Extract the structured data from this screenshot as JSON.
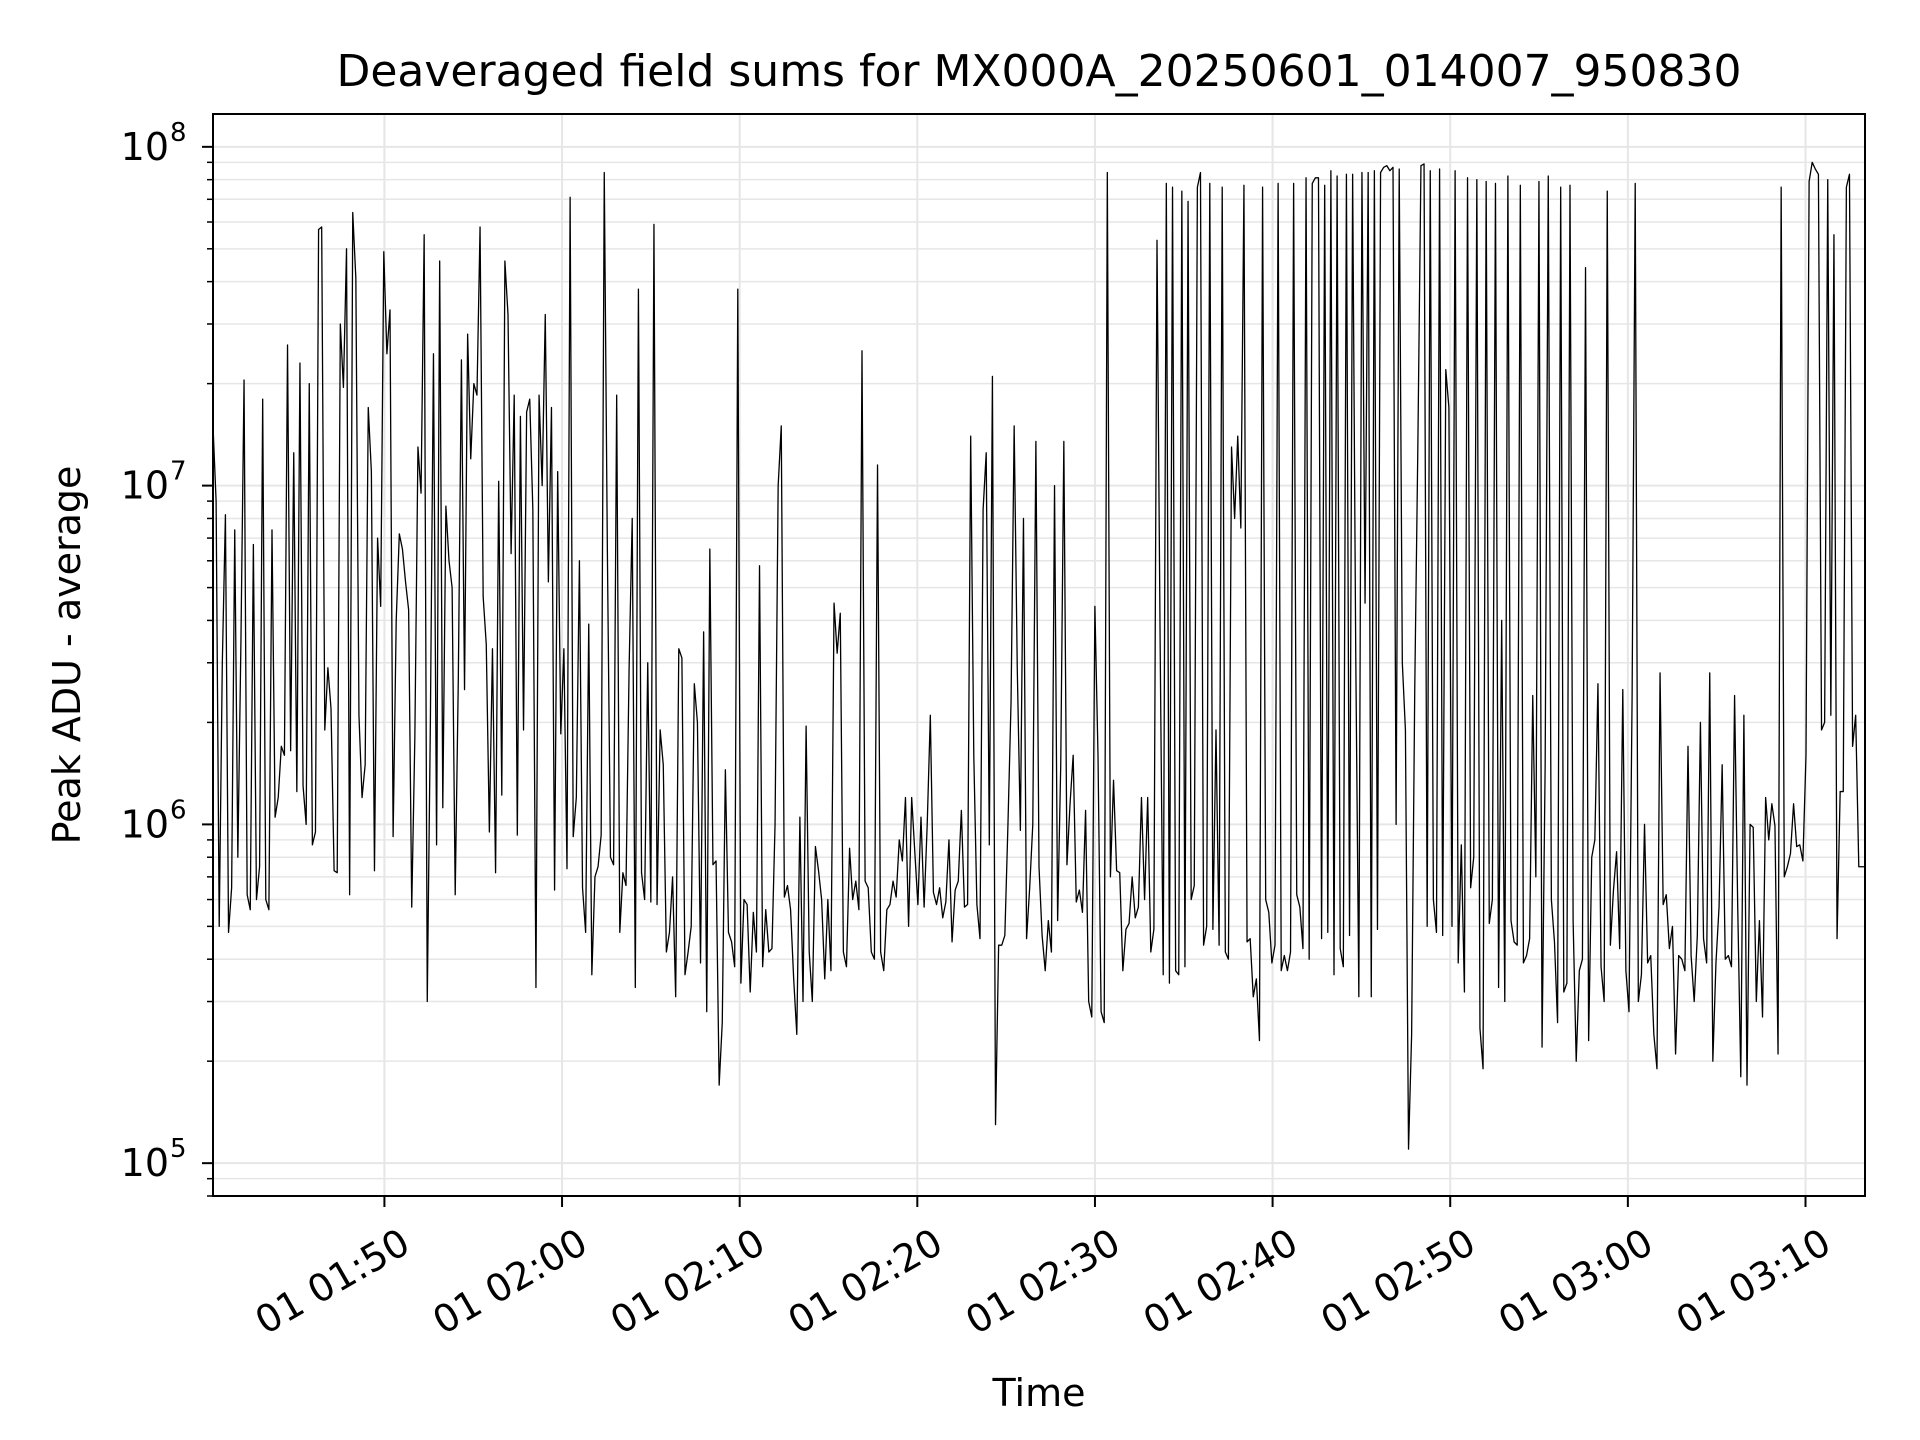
{
  "chart_data": {
    "type": "line",
    "title": "Deaveraged field sums for MX000A_20250601_014007_950830",
    "xlabel": "Time",
    "ylabel": "Peak ADU - average",
    "yscale": "log",
    "ylim": [
      80000,
      125000000
    ],
    "xlim": [
      "2025-06-01 01:40:21",
      "2025-06-01 03:13:21"
    ],
    "grid": true,
    "legend": "none",
    "line_color": "#000000",
    "grid_color": "#e6e6e6",
    "x_ticks": [
      {
        "time": "2025-06-01 01:50",
        "label": "01 01:50"
      },
      {
        "time": "2025-06-01 02:00",
        "label": "01 02:00"
      },
      {
        "time": "2025-06-01 02:10",
        "label": "01 02:10"
      },
      {
        "time": "2025-06-01 02:20",
        "label": "01 02:20"
      },
      {
        "time": "2025-06-01 02:30",
        "label": "01 02:30"
      },
      {
        "time": "2025-06-01 02:40",
        "label": "01 02:40"
      },
      {
        "time": "2025-06-01 02:50",
        "label": "01 02:50"
      },
      {
        "time": "2025-06-01 03:00",
        "label": "01 03:00"
      },
      {
        "time": "2025-06-01 03:10",
        "label": "01 03:10"
      }
    ],
    "y_ticks": [
      {
        "value": 100000,
        "base": "10",
        "exp": "5"
      },
      {
        "value": 1000000,
        "base": "10",
        "exp": "6"
      },
      {
        "value": 10000000,
        "base": "10",
        "exp": "7"
      },
      {
        "value": 100000000,
        "base": "10",
        "exp": "8"
      }
    ],
    "series": [
      {
        "x_start": "2025-06-01 01:40:21",
        "x_end": "2025-06-01 03:13:21",
        "values": [
          15000000,
          9000000,
          500000,
          3000000,
          8200000,
          480000,
          650000,
          7400000,
          800000,
          3500000,
          20500000,
          620000,
          560000,
          6700000,
          600000,
          750000,
          18000000,
          600000,
          560000,
          7400000,
          1050000,
          1200000,
          1700000,
          1600000,
          26000000,
          1650000,
          12500000,
          1250000,
          23000000,
          1300000,
          1000000,
          20000000,
          870000,
          950000,
          57000000,
          58000000,
          1900000,
          2900000,
          2200000,
          730000,
          720000,
          30000000,
          19500000,
          50000000,
          620000,
          64000000,
          41000000,
          2100000,
          1200000,
          1500000,
          17000000,
          11000000,
          730000,
          7000000,
          4400000,
          49000000,
          24500000,
          33000000,
          920000,
          4000000,
          7200000,
          6500000,
          5200000,
          4300000,
          570000,
          1800000,
          13000000,
          9500000,
          55000000,
          300000,
          2000000,
          24500000,
          870000,
          46000000,
          1120000,
          8700000,
          6000000,
          5000000,
          620000,
          2700000,
          23500000,
          2500000,
          28000000,
          12000000,
          20000000,
          18500000,
          58000000,
          4700000,
          3400000,
          950000,
          3300000,
          720000,
          10300000,
          1220000,
          46000000,
          32000000,
          6300000,
          18500000,
          930000,
          16000000,
          1900000,
          16500000,
          18000000,
          8500000,
          330000,
          18500000,
          10000000,
          32000000,
          5200000,
          17000000,
          640000,
          11000000,
          1850000,
          3300000,
          740000,
          71000000,
          920000,
          1200000,
          6000000,
          650000,
          480000,
          3900000,
          360000,
          700000,
          750000,
          930000,
          84000000,
          6400000,
          800000,
          760000,
          18500000,
          480000,
          720000,
          660000,
          2900000,
          8000000,
          330000,
          38000000,
          720000,
          600000,
          3000000,
          590000,
          59000000,
          580000,
          1900000,
          1500000,
          420000,
          480000,
          700000,
          310000,
          3300000,
          3100000,
          360000,
          420000,
          500000,
          2600000,
          2000000,
          390000,
          3700000,
          280000,
          6500000,
          760000,
          780000,
          170000,
          260000,
          1450000,
          480000,
          450000,
          380000,
          38000000,
          340000,
          600000,
          580000,
          320000,
          550000,
          420000,
          5800000,
          380000,
          560000,
          420000,
          430000,
          1000000,
          10000000,
          15000000,
          610000,
          660000,
          560000,
          350000,
          240000,
          1050000,
          300000,
          1950000,
          420000,
          300000,
          860000,
          730000,
          600000,
          350000,
          600000,
          370000,
          4500000,
          3200000,
          4200000,
          420000,
          380000,
          850000,
          600000,
          680000,
          560000,
          25000000,
          680000,
          650000,
          420000,
          400000,
          11500000,
          420000,
          370000,
          560000,
          580000,
          680000,
          610000,
          900000,
          780000,
          1200000,
          500000,
          1200000,
          830000,
          580000,
          1050000,
          570000,
          1000000,
          2100000,
          630000,
          580000,
          650000,
          530000,
          590000,
          900000,
          450000,
          640000,
          680000,
          1100000,
          570000,
          580000,
          14000000,
          1600000,
          580000,
          460000,
          8500000,
          12500000,
          870000,
          21000000,
          130000,
          440000,
          440000,
          470000,
          1000000,
          2300000,
          15000000,
          2900000,
          960000,
          8000000,
          460000,
          650000,
          1000000,
          13500000,
          750000,
          470000,
          370000,
          520000,
          420000,
          10000000,
          520000,
          1500000,
          13500000,
          760000,
          1150000,
          1600000,
          590000,
          640000,
          550000,
          1100000,
          300000,
          270000,
          4400000,
          1600000,
          280000,
          260000,
          84000000,
          700000,
          1350000,
          730000,
          720000,
          370000,
          490000,
          510000,
          700000,
          530000,
          570000,
          1200000,
          600000,
          1200000,
          420000,
          490000,
          53000000,
          3500000,
          360000,
          78000000,
          340000,
          76000000,
          370000,
          360000,
          74000000,
          380000,
          69000000,
          600000,
          660000,
          76000000,
          84000000,
          440000,
          500000,
          78000000,
          490000,
          1900000,
          440000,
          76000000,
          420000,
          400000,
          13000000,
          8000000,
          14000000,
          7500000,
          77000000,
          450000,
          460000,
          310000,
          350000,
          230000,
          76000000,
          600000,
          550000,
          390000,
          440000,
          78000000,
          370000,
          410000,
          370000,
          420000,
          78000000,
          620000,
          570000,
          430000,
          81000000,
          400000,
          78000000,
          81000000,
          81000000,
          460000,
          77000000,
          480000,
          85000000,
          360000,
          82000000,
          430000,
          380000,
          83000000,
          470000,
          83000000,
          3200000,
          310000,
          84000000,
          4500000,
          84000000,
          310000,
          85000000,
          490000,
          84000000,
          87000000,
          88000000,
          85000000,
          87000000,
          1000000,
          86000000,
          3000000,
          1900000,
          110000,
          240000,
          2500000,
          13000000,
          88000000,
          89000000,
          500000,
          85000000,
          600000,
          480000,
          86000000,
          470000,
          22000000,
          17000000,
          500000,
          85000000,
          390000,
          870000,
          320000,
          81000000,
          650000,
          800000,
          80000000,
          250000,
          190000,
          79000000,
          510000,
          600000,
          78000000,
          330000,
          4000000,
          300000,
          82000000,
          520000,
          450000,
          440000,
          77000000,
          390000,
          410000,
          460000,
          2400000,
          700000,
          79000000,
          220000,
          1500000,
          82000000,
          600000,
          450000,
          260000,
          76000000,
          320000,
          340000,
          77000000,
          520000,
          200000,
          370000,
          400000,
          44000000,
          230000,
          800000,
          900000,
          2600000,
          380000,
          300000,
          74000000,
          440000,
          640000,
          830000,
          430000,
          2500000,
          370000,
          280000,
          2400000,
          78000000,
          300000,
          360000,
          1000000,
          390000,
          410000,
          240000,
          190000,
          2800000,
          580000,
          620000,
          430000,
          500000,
          210000,
          410000,
          400000,
          370000,
          1700000,
          410000,
          300000,
          470000,
          2000000,
          460000,
          390000,
          2800000,
          200000,
          390000,
          570000,
          1500000,
          400000,
          410000,
          380000,
          2400000,
          580000,
          180000,
          2100000,
          170000,
          1000000,
          980000,
          300000,
          520000,
          270000,
          1200000,
          900000,
          1150000,
          990000,
          210000,
          76000000,
          700000,
          750000,
          820000,
          1150000,
          860000,
          870000,
          780000,
          1600000,
          79000000,
          90000000,
          86000000,
          83000000,
          1900000,
          2000000,
          80000000,
          2100000,
          55000000,
          460000,
          1250000,
          1250000,
          76000000,
          83000000,
          1700000,
          2100000,
          750000,
          750000,
          750000
        ]
      }
    ]
  }
}
